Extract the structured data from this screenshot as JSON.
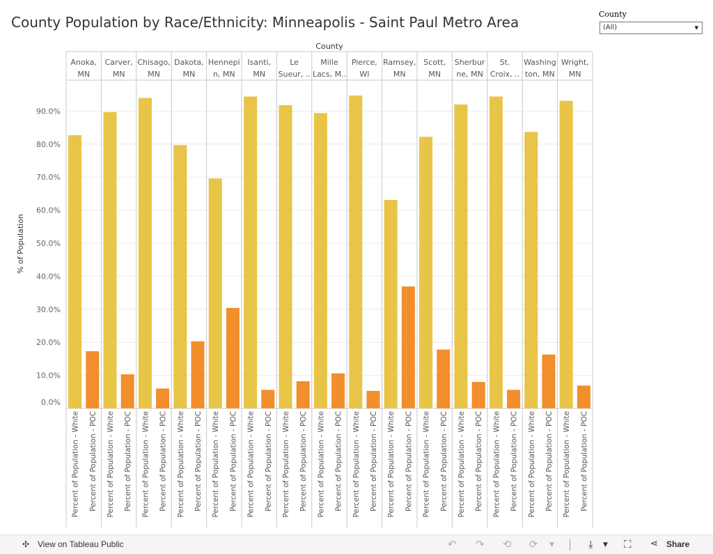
{
  "title": "County Population by Race/Ethnicity: Minneapolis - Saint Paul Metro Area",
  "filter": {
    "label": "County",
    "value": "(All)"
  },
  "toolbar": {
    "view_label": "View on Tableau Public",
    "share_label": "Share",
    "icons": [
      "undo-icon",
      "redo-icon",
      "revert-icon",
      "refresh-icon",
      "download-icon",
      "fullscreen-icon",
      "share-icon"
    ]
  },
  "colors": {
    "white": "#E8C547",
    "poc": "#F28E2B",
    "grid": "#ebebeb",
    "border": "#c8c8c8"
  },
  "chart_data": {
    "type": "bar",
    "header": "County",
    "ylabel": "% of Population",
    "ylim": [
      0,
      100
    ],
    "yticks": [
      "0.0%",
      "10.0%",
      "20.0%",
      "30.0%",
      "40.0%",
      "50.0%",
      "60.0%",
      "70.0%",
      "80.0%",
      "90.0%"
    ],
    "measures": [
      "Percent of Population - White",
      "Percent of Population - POC"
    ],
    "counties": [
      {
        "label": [
          "Anoka,",
          "MN"
        ],
        "white": 82.7,
        "poc": 17.3
      },
      {
        "label": [
          "Carver,",
          "MN"
        ],
        "white": 89.7,
        "poc": 10.3
      },
      {
        "label": [
          "Chisago,",
          "MN"
        ],
        "white": 94.0,
        "poc": 6.0
      },
      {
        "label": [
          "Dakota,",
          "MN"
        ],
        "white": 79.7,
        "poc": 20.3
      },
      {
        "label": [
          "Hennepi",
          "n, MN"
        ],
        "white": 69.6,
        "poc": 30.4
      },
      {
        "label": [
          "Isanti,",
          "MN"
        ],
        "white": 94.4,
        "poc": 5.6
      },
      {
        "label": [
          "Le",
          "Sueur, .."
        ],
        "white": 91.8,
        "poc": 8.2
      },
      {
        "label": [
          "Mille",
          "Lacs, M.."
        ],
        "white": 89.4,
        "poc": 10.6
      },
      {
        "label": [
          "Pierce,",
          "WI"
        ],
        "white": 94.7,
        "poc": 5.3
      },
      {
        "label": [
          "Ramsey,",
          "MN"
        ],
        "white": 63.1,
        "poc": 36.9
      },
      {
        "label": [
          "Scott,",
          "MN"
        ],
        "white": 82.2,
        "poc": 17.8
      },
      {
        "label": [
          "Sherbur",
          "ne, MN"
        ],
        "white": 92.0,
        "poc": 8.0
      },
      {
        "label": [
          "St.",
          "Croix, .."
        ],
        "white": 94.4,
        "poc": 5.6
      },
      {
        "label": [
          "Washing",
          "ton, MN"
        ],
        "white": 83.7,
        "poc": 16.3
      },
      {
        "label": [
          "Wright,",
          "MN"
        ],
        "white": 93.1,
        "poc": 6.9
      }
    ]
  }
}
